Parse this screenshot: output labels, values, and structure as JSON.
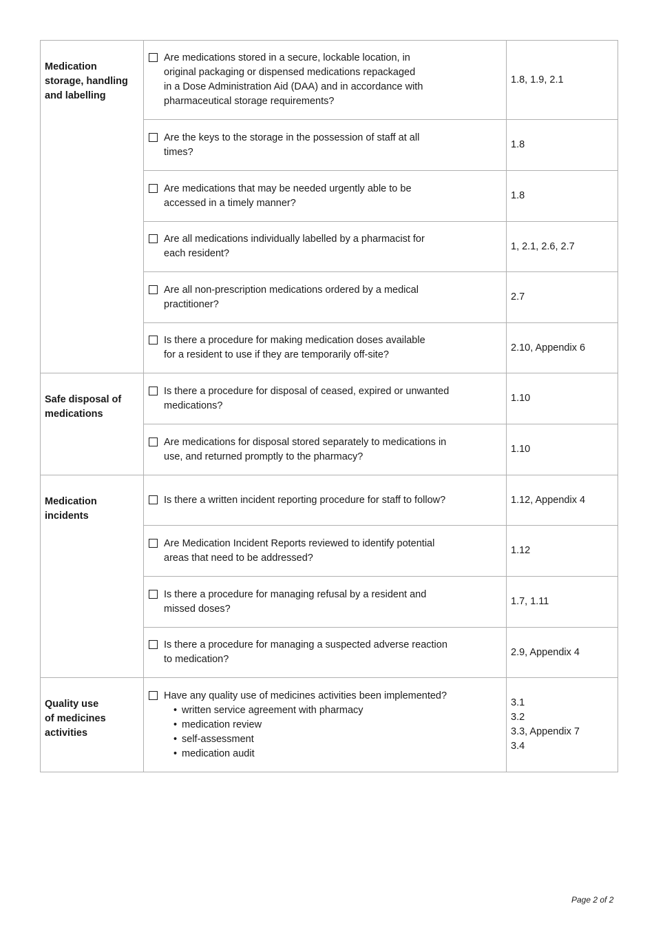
{
  "sections": [
    {
      "label": "Medication\nstorage, handling\nand labelling",
      "items": [
        {
          "question": "Are medications stored in a secure, lockable location, in\noriginal packaging or dispensed medications repackaged\nin a Dose Administration Aid (DAA) and in accordance with\npharmaceutical storage requirements?",
          "refs": "1.8, 1.9, 2.1"
        },
        {
          "question": "Are the keys to the storage in the possession of staff at all\ntimes?",
          "refs": "1.8"
        },
        {
          "question": "Are medications that may be needed urgently able to be\naccessed in a timely manner?",
          "refs": "1.8"
        },
        {
          "question": "Are all medications individually labelled by a pharmacist for\neach resident?",
          "refs": "1, 2.1, 2.6, 2.7"
        },
        {
          "question": "Are all non-prescription medications ordered by a medical\npractitioner?",
          "refs": "2.7"
        },
        {
          "question": "Is there a procedure for making medication doses available\nfor a resident to use if they are temporarily off-site?",
          "refs": "2.10, Appendix 6"
        }
      ]
    },
    {
      "label": "Safe disposal of\nmedications",
      "items": [
        {
          "question": "Is there a procedure for disposal of ceased, expired or unwanted\nmedications?",
          "refs": "1.10"
        },
        {
          "question": "Are medications for disposal stored separately to medications in\nuse, and returned promptly to the pharmacy?",
          "refs": "1.10"
        }
      ]
    },
    {
      "label": "Medication\nincidents",
      "items": [
        {
          "question": "Is there a written incident reporting procedure for staff to follow?",
          "refs": "1.12, Appendix 4"
        },
        {
          "question": "Are Medication Incident Reports reviewed to identify potential\nareas that need to be addressed?",
          "refs": "1.12"
        },
        {
          "question": "Is there a procedure for managing refusal by a resident and\nmissed doses?",
          "refs": "1.7, 1.11"
        },
        {
          "question": "Is there a procedure for managing a suspected adverse reaction\nto medication?",
          "refs": "2.9, Appendix 4"
        }
      ]
    },
    {
      "label": "Quality use\nof medicines\nactivities",
      "items": [
        {
          "question": "Have any quality use of medicines activities been implemented?",
          "bullets": [
            "written service agreement with pharmacy",
            "medication review",
            "self-assessment",
            "medication audit"
          ],
          "refs": "3.1\n3.2\n3.3, Appendix 7\n3.4"
        }
      ]
    }
  ],
  "footer": {
    "page": "Page 2 of 2"
  }
}
